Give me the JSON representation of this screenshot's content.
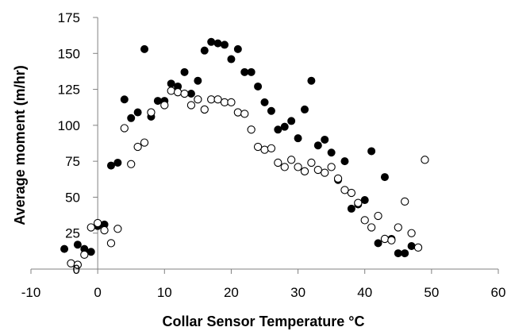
{
  "chart_data": {
    "type": "scatter",
    "title": "",
    "xlabel": "Collar Sensor Temperature °C",
    "ylabel": "Average moment (m/hr)",
    "xlim": [
      -10,
      60
    ],
    "ylim": [
      0,
      175
    ],
    "x_ticks": [
      "-10",
      "0",
      "10",
      "20",
      "30",
      "40",
      "50",
      "60"
    ],
    "y_ticks": [
      "0",
      "25",
      "50",
      "75",
      "100",
      "125",
      "150",
      "175"
    ],
    "grid": false,
    "legend": "none",
    "series": [
      {
        "marker": "filled-circle",
        "color": "#000000",
        "x": [
          -5,
          -3,
          -2,
          -1,
          0,
          1,
          2,
          3,
          4,
          5,
          6,
          7,
          8,
          9,
          10,
          11,
          12,
          13,
          14,
          15,
          16,
          17,
          18,
          19,
          20,
          21,
          22,
          23,
          24,
          25,
          26,
          27,
          28,
          29,
          30,
          31,
          32,
          33,
          34,
          35,
          36,
          37,
          38,
          39,
          40,
          41,
          42,
          43,
          44,
          45,
          46,
          47
        ],
        "y": [
          14,
          17,
          14,
          12,
          30,
          31,
          72,
          74,
          118,
          105,
          109,
          153,
          106,
          117,
          117,
          129,
          127,
          137,
          122,
          131,
          152,
          158,
          157,
          156,
          146,
          153,
          137,
          137,
          127,
          116,
          110,
          97,
          99,
          103,
          91,
          111,
          131,
          86,
          90,
          81,
          62,
          75,
          42,
          45,
          48,
          82,
          18,
          64,
          21,
          11,
          11,
          16
        ]
      },
      {
        "marker": "open-circle",
        "color": "#000000",
        "x": [
          -4,
          -3,
          -2,
          -1,
          0,
          1,
          2,
          3,
          4,
          5,
          6,
          7,
          8,
          10,
          11,
          12,
          13,
          14,
          15,
          16,
          17,
          18,
          19,
          20,
          21,
          22,
          23,
          24,
          25,
          26,
          27,
          28,
          29,
          30,
          31,
          32,
          33,
          34,
          35,
          36,
          37,
          38,
          39,
          40,
          41,
          42,
          43,
          44,
          45,
          46,
          47,
          48,
          49
        ],
        "y": [
          4,
          3,
          10,
          29,
          32,
          27,
          18,
          28,
          98,
          73,
          85,
          88,
          109,
          114,
          124,
          123,
          122,
          114,
          118,
          111,
          118,
          118,
          116,
          116,
          109,
          108,
          97,
          85,
          83,
          84,
          74,
          71,
          76,
          71,
          68,
          74,
          69,
          67,
          71,
          63,
          55,
          53,
          46,
          34,
          29,
          37,
          21,
          20,
          29,
          47,
          25,
          15,
          76
        ]
      }
    ]
  }
}
